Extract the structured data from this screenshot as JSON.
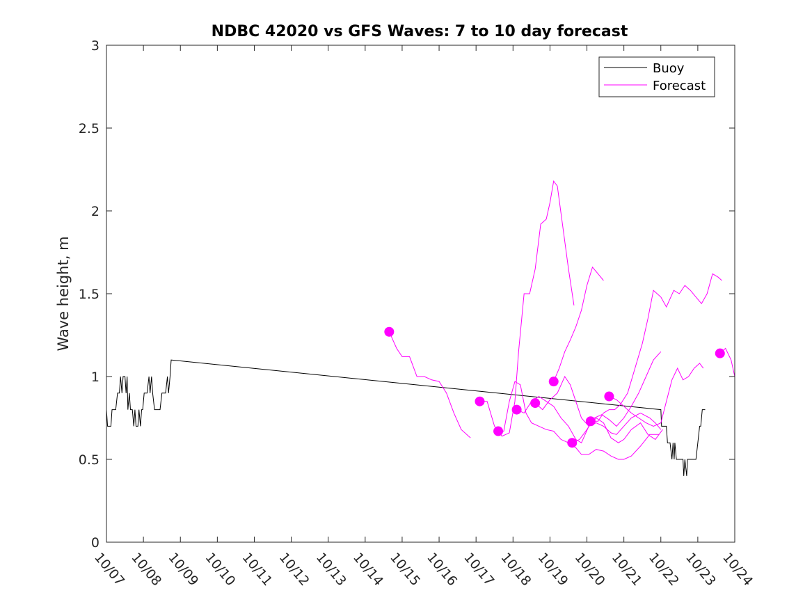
{
  "chart_data": {
    "type": "line",
    "title": "NDBC 42020 vs GFS Waves: 7 to 10 day forecast",
    "xlabel": "",
    "ylabel": "Wave height, m",
    "xlim": [
      0,
      17
    ],
    "ylim": [
      0,
      3
    ],
    "grid": false,
    "legend_position": "top-right",
    "x_unit": "days since 10/07 00:00",
    "x_ticks": [
      0,
      1,
      2,
      3,
      4,
      5,
      6,
      7,
      8,
      9,
      10,
      11,
      12,
      13,
      14,
      15,
      16,
      17
    ],
    "x_tick_labels": [
      "10/07",
      "10/08",
      "10/09",
      "10/10",
      "10/11",
      "10/12",
      "10/13",
      "10/14",
      "10/15",
      "10/16",
      "10/17",
      "10/18",
      "10/19",
      "10/20",
      "10/21",
      "10/22",
      "10/23",
      "10/24"
    ],
    "y_ticks": [
      0,
      0.5,
      1,
      1.5,
      2,
      2.5,
      3
    ],
    "y_tick_labels": [
      "0",
      "0.5",
      "1",
      "1.5",
      "2",
      "2.5",
      "3"
    ],
    "colors": {
      "buoy": "#000000",
      "forecast": "#ff00ff"
    },
    "legend": [
      {
        "name": "Buoy",
        "color": "#000000"
      },
      {
        "name": "Forecast",
        "color": "#ff00ff"
      }
    ],
    "buoy": {
      "name": "Buoy",
      "points": [
        [
          0,
          0.8
        ],
        [
          0.03,
          0.7
        ],
        [
          0.12,
          0.7
        ],
        [
          0.15,
          0.8
        ],
        [
          0.25,
          0.8
        ],
        [
          0.3,
          0.9
        ],
        [
          0.35,
          0.9
        ],
        [
          0.38,
          1.0
        ],
        [
          0.42,
          0.9
        ],
        [
          0.45,
          1.0
        ],
        [
          0.5,
          1.0
        ],
        [
          0.53,
          0.9
        ],
        [
          0.56,
          1.0
        ],
        [
          0.58,
          0.8
        ],
        [
          0.62,
          0.9
        ],
        [
          0.65,
          0.8
        ],
        [
          0.7,
          0.8
        ],
        [
          0.74,
          0.7
        ],
        [
          0.77,
          0.8
        ],
        [
          0.8,
          0.7
        ],
        [
          0.85,
          0.7
        ],
        [
          0.88,
          0.8
        ],
        [
          0.92,
          0.7
        ],
        [
          0.95,
          0.8
        ],
        [
          0.98,
          0.8
        ],
        [
          1.02,
          0.9
        ],
        [
          1.1,
          0.9
        ],
        [
          1.15,
          1.0
        ],
        [
          1.18,
          0.9
        ],
        [
          1.22,
          1.0
        ],
        [
          1.25,
          0.9
        ],
        [
          1.3,
          0.8
        ],
        [
          1.45,
          0.8
        ],
        [
          1.5,
          0.9
        ],
        [
          1.6,
          0.9
        ],
        [
          1.65,
          1.0
        ],
        [
          1.68,
          0.9
        ],
        [
          1.72,
          1.0
        ],
        [
          1.75,
          1.1
        ],
        [
          15.0,
          0.8
        ],
        [
          15.02,
          0.7
        ],
        [
          15.15,
          0.7
        ],
        [
          15.18,
          0.6
        ],
        [
          15.25,
          0.6
        ],
        [
          15.3,
          0.5
        ],
        [
          15.33,
          0.6
        ],
        [
          15.36,
          0.5
        ],
        [
          15.38,
          0.6
        ],
        [
          15.42,
          0.5
        ],
        [
          15.6,
          0.5
        ],
        [
          15.62,
          0.4
        ],
        [
          15.65,
          0.5
        ],
        [
          15.7,
          0.4
        ],
        [
          15.72,
          0.5
        ],
        [
          15.95,
          0.5
        ],
        [
          16.0,
          0.6
        ],
        [
          16.05,
          0.7
        ],
        [
          16.08,
          0.7
        ],
        [
          16.12,
          0.8
        ],
        [
          16.2,
          0.8
        ]
      ]
    },
    "forecast_series": [
      {
        "name": "Forecast",
        "marker": [
          7.65,
          1.27
        ],
        "points": [
          [
            7.65,
            1.27
          ],
          [
            7.85,
            1.17
          ],
          [
            8.0,
            1.12
          ],
          [
            8.2,
            1.12
          ],
          [
            8.4,
            1.0
          ],
          [
            8.6,
            1.0
          ],
          [
            8.8,
            0.98
          ],
          [
            9.0,
            0.97
          ],
          [
            9.2,
            0.9
          ],
          [
            9.4,
            0.78
          ],
          [
            9.6,
            0.68
          ],
          [
            9.85,
            0.63
          ]
        ]
      },
      {
        "name": "Forecast",
        "marker": [
          10.1,
          0.85
        ],
        "points": [
          [
            10.1,
            0.85
          ],
          [
            10.3,
            0.85
          ],
          [
            10.5,
            0.7
          ],
          [
            10.7,
            0.64
          ],
          [
            10.9,
            0.66
          ],
          [
            11.05,
            0.85
          ],
          [
            11.15,
            1.15
          ],
          [
            11.3,
            1.5
          ],
          [
            11.45,
            1.5
          ],
          [
            11.6,
            1.65
          ],
          [
            11.75,
            1.92
          ],
          [
            11.9,
            1.95
          ],
          [
            12.0,
            2.05
          ],
          [
            12.1,
            2.18
          ],
          [
            12.2,
            2.15
          ],
          [
            12.35,
            1.9
          ],
          [
            12.5,
            1.65
          ],
          [
            12.65,
            1.43
          ]
        ]
      },
      {
        "name": "Forecast",
        "marker": [
          10.6,
          0.67
        ],
        "points": [
          [
            10.6,
            0.67
          ],
          [
            10.75,
            0.67
          ],
          [
            10.9,
            0.85
          ],
          [
            11.05,
            0.97
          ],
          [
            11.2,
            0.95
          ],
          [
            11.35,
            0.78
          ],
          [
            11.5,
            0.72
          ],
          [
            11.7,
            0.7
          ],
          [
            11.9,
            0.68
          ],
          [
            12.1,
            0.67
          ],
          [
            12.3,
            0.62
          ],
          [
            12.5,
            0.6
          ],
          [
            12.7,
            0.57
          ],
          [
            12.85,
            0.53
          ],
          [
            13.05,
            0.53
          ],
          [
            13.25,
            0.56
          ],
          [
            13.45,
            0.55
          ],
          [
            13.65,
            0.52
          ],
          [
            13.85,
            0.5
          ],
          [
            14.0,
            0.5
          ],
          [
            14.2,
            0.52
          ],
          [
            14.45,
            0.58
          ],
          [
            14.7,
            0.65
          ],
          [
            14.95,
            0.65
          ]
        ]
      },
      {
        "name": "Forecast",
        "marker": [
          11.1,
          0.8
        ],
        "points": [
          [
            11.1,
            0.8
          ],
          [
            11.3,
            0.78
          ],
          [
            11.5,
            0.85
          ],
          [
            11.7,
            0.88
          ],
          [
            11.9,
            0.85
          ],
          [
            12.1,
            0.82
          ],
          [
            12.3,
            0.75
          ],
          [
            12.5,
            0.7
          ],
          [
            12.7,
            0.62
          ],
          [
            12.85,
            0.6
          ],
          [
            13.05,
            0.7
          ],
          [
            13.25,
            0.75
          ],
          [
            13.45,
            0.72
          ],
          [
            13.65,
            0.63
          ],
          [
            13.85,
            0.6
          ],
          [
            14.0,
            0.62
          ],
          [
            14.2,
            0.68
          ],
          [
            14.45,
            0.72
          ],
          [
            14.65,
            0.65
          ],
          [
            14.85,
            0.62
          ],
          [
            15.05,
            0.68
          ]
        ]
      },
      {
        "name": "Forecast",
        "marker": [
          11.6,
          0.84
        ],
        "points": [
          [
            11.6,
            0.84
          ],
          [
            11.8,
            0.8
          ],
          [
            12.0,
            0.86
          ],
          [
            12.2,
            0.9
          ],
          [
            12.4,
            1.0
          ],
          [
            12.55,
            0.95
          ],
          [
            12.7,
            0.85
          ],
          [
            12.85,
            0.75
          ],
          [
            13.05,
            0.7
          ],
          [
            13.25,
            0.72
          ],
          [
            13.45,
            0.7
          ],
          [
            13.65,
            0.66
          ],
          [
            13.8,
            0.65
          ],
          [
            14.0,
            0.7
          ],
          [
            14.2,
            0.75
          ],
          [
            14.45,
            0.78
          ],
          [
            14.7,
            0.75
          ],
          [
            14.85,
            0.72
          ],
          [
            15.0,
            0.68
          ]
        ]
      },
      {
        "name": "Forecast",
        "marker": [
          12.1,
          0.97
        ],
        "points": [
          [
            12.1,
            0.97
          ],
          [
            12.25,
            1.05
          ],
          [
            12.4,
            1.15
          ],
          [
            12.55,
            1.22
          ],
          [
            12.7,
            1.3
          ],
          [
            12.85,
            1.4
          ],
          [
            13.0,
            1.55
          ],
          [
            13.15,
            1.66
          ],
          [
            13.3,
            1.62
          ],
          [
            13.45,
            1.58
          ]
        ]
      },
      {
        "name": "Forecast",
        "marker": [
          12.6,
          0.6
        ],
        "points": [
          [
            12.6,
            0.6
          ],
          [
            12.8,
            0.62
          ],
          [
            13.0,
            0.68
          ],
          [
            13.2,
            0.75
          ],
          [
            13.4,
            0.77
          ],
          [
            13.6,
            0.74
          ],
          [
            13.8,
            0.7
          ],
          [
            14.0,
            0.75
          ],
          [
            14.2,
            0.82
          ],
          [
            14.4,
            0.9
          ],
          [
            14.6,
            1.0
          ],
          [
            14.8,
            1.1
          ],
          [
            15.0,
            1.15
          ]
        ]
      },
      {
        "name": "Forecast",
        "marker": [
          13.1,
          0.73
        ],
        "points": [
          [
            13.1,
            0.73
          ],
          [
            13.3,
            0.73
          ],
          [
            13.45,
            0.78
          ],
          [
            13.6,
            0.8
          ],
          [
            13.75,
            0.8
          ],
          [
            13.9,
            0.83
          ],
          [
            14.1,
            0.9
          ],
          [
            14.3,
            1.05
          ],
          [
            14.5,
            1.2
          ],
          [
            14.65,
            1.35
          ],
          [
            14.8,
            1.52
          ],
          [
            15.0,
            1.48
          ],
          [
            15.15,
            1.42
          ],
          [
            15.35,
            1.52
          ],
          [
            15.5,
            1.5
          ],
          [
            15.65,
            1.55
          ],
          [
            15.8,
            1.52
          ],
          [
            15.95,
            1.48
          ],
          [
            16.1,
            1.44
          ],
          [
            16.25,
            1.5
          ],
          [
            16.4,
            1.62
          ],
          [
            16.55,
            1.6
          ],
          [
            16.65,
            1.58
          ]
        ]
      },
      {
        "name": "Forecast",
        "marker": [
          13.6,
          0.88
        ],
        "points": [
          [
            13.6,
            0.88
          ],
          [
            13.8,
            0.86
          ],
          [
            14.0,
            0.82
          ],
          [
            14.2,
            0.78
          ],
          [
            14.4,
            0.75
          ],
          [
            14.6,
            0.72
          ],
          [
            14.8,
            0.7
          ],
          [
            15.0,
            0.72
          ],
          [
            15.15,
            0.85
          ],
          [
            15.3,
            0.98
          ],
          [
            15.45,
            1.05
          ],
          [
            15.6,
            0.98
          ],
          [
            15.75,
            1.0
          ],
          [
            15.9,
            1.05
          ],
          [
            16.05,
            1.08
          ],
          [
            16.15,
            1.05
          ]
        ]
      },
      {
        "name": "Forecast",
        "marker": [
          16.6,
          1.14
        ],
        "points": [
          [
            16.6,
            1.14
          ],
          [
            16.75,
            1.17
          ],
          [
            16.9,
            1.1
          ],
          [
            17.0,
            1.0
          ]
        ]
      }
    ]
  }
}
